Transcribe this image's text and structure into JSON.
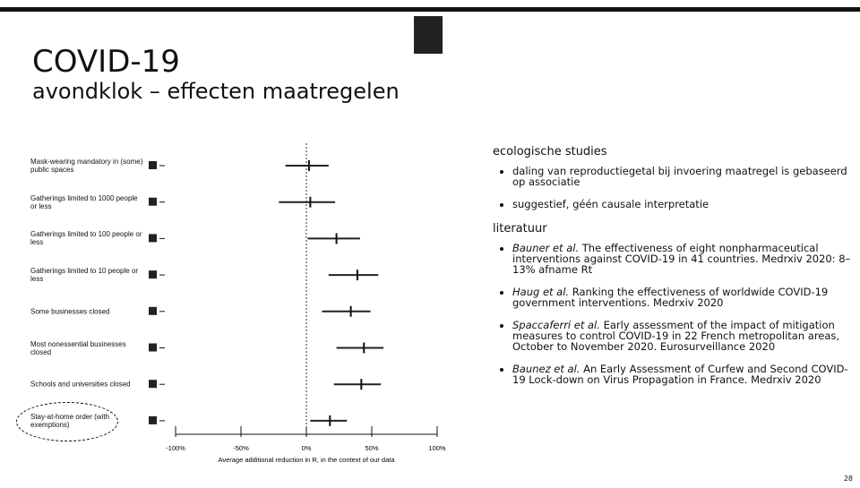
{
  "header": {
    "title": "COVID-19",
    "subtitle": "avondklok – effecten maatregelen"
  },
  "chart": {
    "type": "forest",
    "categories": [
      "Mask-wearing mandatory in (some) public spaces",
      "Gatherings limited to 1000 people or less",
      "Gatherings limited to 100 people or less",
      "Gatherings limited to 10 people or less",
      "Some businesses closed",
      "Most nonessential businesses closed",
      "Schools and universities closed",
      "Stay-at-home order (with exemptions)"
    ],
    "values": [
      2,
      3,
      23,
      39,
      34,
      44,
      42,
      18
    ],
    "lower": [
      -16,
      -21,
      1,
      17,
      12,
      23,
      21,
      3
    ],
    "upper": [
      17,
      22,
      41,
      55,
      49,
      59,
      57,
      31
    ],
    "xlim": [
      -100,
      100
    ],
    "xticks": [
      {
        "value": -100,
        "label": "-100%"
      },
      {
        "value": -50,
        "label": "-50%"
      },
      {
        "value": 0,
        "label": "0%"
      },
      {
        "value": 50,
        "label": "50%"
      },
      {
        "value": 100,
        "label": "100%"
      }
    ],
    "xlabel": "Average additional reduction in R, in the context of our data"
  },
  "sections": [
    {
      "heading": "ecologische studies",
      "bullets": [
        {
          "text": "daling van reproductiegetal bij invoering maatregel is gebaseerd op associatie"
        },
        {
          "text": "suggestief, géén causale interpretatie"
        }
      ]
    },
    {
      "heading": "literatuur",
      "bullets": [
        {
          "author": "Bauner et al.",
          "text": " The effectiveness of eight nonpharmaceutical interventions against COVID-19 in 41 countries. Medrxiv 2020: 8–13% afname Rt"
        },
        {
          "author": "Haug et al.",
          "text": " Ranking the effectiveness of worldwide COVID-19 government interventions. Medrxiv 2020"
        },
        {
          "author": "Spaccaferri et al.",
          "text": " Early assessment of the impact of mitigation measures to control COVID-19 in 22 French metropolitan areas, October to November 2020. Eurosurveillance 2020"
        },
        {
          "author": "Baunez et al.",
          "text": " An Early Assessment of Curfew and Second COVID-19 Lock-down on Virus Propagation in France. Medrxiv 2020"
        }
      ]
    }
  ],
  "page_number": "28"
}
